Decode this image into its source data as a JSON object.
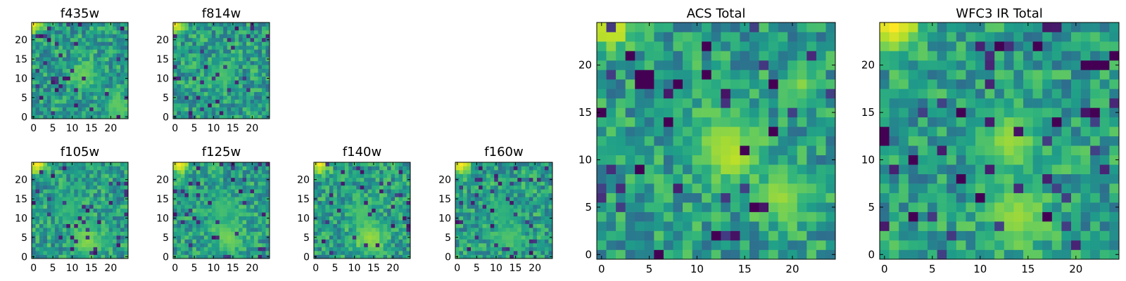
{
  "chart_data": [
    {
      "id": "f435w",
      "type": "heatmap",
      "title": "f435w",
      "grid_size": [
        25,
        25
      ],
      "colormap": "viridis",
      "xlabel": "",
      "ylabel": "",
      "xticks": [
        0,
        5,
        10,
        15,
        20
      ],
      "yticks": [
        0,
        5,
        10,
        15,
        20
      ],
      "xlim": [
        -0.5,
        24.5
      ],
      "ylim": [
        -0.5,
        24.5
      ],
      "origin": "lower",
      "grid": false,
      "noise_seed": 11,
      "features": [
        {
          "x": 0,
          "y": 24,
          "v": 1.0,
          "radius": 1.6
        },
        {
          "x": 13,
          "y": 11,
          "v": 0.78,
          "radius": 2.5
        },
        {
          "x": 22,
          "y": 3,
          "v": 0.75,
          "radius": 2.5
        }
      ]
    },
    {
      "id": "f814w",
      "type": "heatmap",
      "title": "f814w",
      "grid_size": [
        25,
        25
      ],
      "colormap": "viridis",
      "xlabel": "",
      "ylabel": "",
      "xticks": [
        0,
        5,
        10,
        15,
        20
      ],
      "yticks": [
        0,
        5,
        10,
        15,
        20
      ],
      "xlim": [
        -0.5,
        24.5
      ],
      "ylim": [
        -0.5,
        24.5
      ],
      "origin": "lower",
      "grid": false,
      "noise_seed": 23,
      "features": [
        {
          "x": 0,
          "y": 24,
          "v": 1.0,
          "radius": 1.6
        },
        {
          "x": 12,
          "y": 11,
          "v": 0.72,
          "radius": 2.5
        }
      ]
    },
    {
      "id": "f105w",
      "type": "heatmap",
      "title": "f105w",
      "grid_size": [
        25,
        25
      ],
      "colormap": "viridis",
      "xlabel": "",
      "ylabel": "",
      "xticks": [
        0,
        5,
        10,
        15,
        20
      ],
      "yticks": [
        0,
        5,
        10,
        15,
        20
      ],
      "xlim": [
        -0.5,
        24.5
      ],
      "ylim": [
        -0.5,
        24.5
      ],
      "origin": "lower",
      "grid": false,
      "noise_seed": 37,
      "features": [
        {
          "x": 1,
          "y": 24,
          "v": 1.0,
          "radius": 1.8
        },
        {
          "x": 14,
          "y": 4,
          "v": 0.82,
          "radius": 2.8
        },
        {
          "x": 9,
          "y": 13,
          "v": 0.68,
          "radius": 2.5
        }
      ]
    },
    {
      "id": "f125w",
      "type": "heatmap",
      "title": "f125w",
      "grid_size": [
        25,
        25
      ],
      "colormap": "viridis",
      "xlabel": "",
      "ylabel": "",
      "xticks": [
        0,
        5,
        10,
        15,
        20
      ],
      "yticks": [
        0,
        5,
        10,
        15,
        20
      ],
      "xlim": [
        -0.5,
        24.5
      ],
      "ylim": [
        -0.5,
        24.5
      ],
      "origin": "lower",
      "grid": false,
      "noise_seed": 41,
      "features": [
        {
          "x": 1,
          "y": 24,
          "v": 1.0,
          "radius": 1.8
        },
        {
          "x": 14,
          "y": 5,
          "v": 0.8,
          "radius": 2.8
        },
        {
          "x": 12,
          "y": 12,
          "v": 0.7,
          "radius": 2.5
        }
      ]
    },
    {
      "id": "f140w",
      "type": "heatmap",
      "title": "f140w",
      "grid_size": [
        25,
        25
      ],
      "colormap": "viridis",
      "xlabel": "",
      "ylabel": "",
      "xticks": [
        0,
        5,
        10,
        15,
        20
      ],
      "yticks": [
        0,
        5,
        10,
        15,
        20
      ],
      "xlim": [
        -0.5,
        24.5
      ],
      "ylim": [
        -0.5,
        24.5
      ],
      "origin": "lower",
      "grid": false,
      "noise_seed": 53,
      "features": [
        {
          "x": 1,
          "y": 24,
          "v": 1.0,
          "radius": 1.8
        },
        {
          "x": 14,
          "y": 5,
          "v": 0.85,
          "radius": 3.0
        },
        {
          "x": 12,
          "y": 12,
          "v": 0.72,
          "radius": 2.5
        }
      ]
    },
    {
      "id": "f160w",
      "type": "heatmap",
      "title": "f160w",
      "grid_size": [
        25,
        25
      ],
      "colormap": "viridis",
      "xlabel": "",
      "ylabel": "",
      "xticks": [
        0,
        5,
        10,
        15,
        20
      ],
      "yticks": [
        0,
        5,
        10,
        15,
        20
      ],
      "xlim": [
        -0.5,
        24.5
      ],
      "ylim": [
        -0.5,
        24.5
      ],
      "origin": "lower",
      "grid": false,
      "noise_seed": 67,
      "features": [
        {
          "x": 1,
          "y": 24,
          "v": 1.0,
          "radius": 1.8
        },
        {
          "x": 13,
          "y": 5,
          "v": 0.72,
          "radius": 2.8
        },
        {
          "x": 12,
          "y": 12,
          "v": 0.65,
          "radius": 2.5
        }
      ]
    },
    {
      "id": "acs-total",
      "type": "heatmap",
      "title": "ACS Total",
      "grid_size": [
        25,
        25
      ],
      "colormap": "viridis",
      "xlabel": "",
      "ylabel": "",
      "xticks": [
        0,
        5,
        10,
        15,
        20
      ],
      "yticks": [
        0,
        5,
        10,
        15,
        20
      ],
      "xlim": [
        -0.5,
        24.5
      ],
      "ylim": [
        -0.5,
        24.5
      ],
      "origin": "lower",
      "grid": false,
      "noise_seed": 79,
      "features": [
        {
          "x": 1,
          "y": 24,
          "v": 1.0,
          "radius": 1.6
        },
        {
          "x": 13,
          "y": 12,
          "v": 0.85,
          "radius": 2.4
        },
        {
          "x": 14,
          "y": 10,
          "v": 0.9,
          "radius": 1.4
        },
        {
          "x": 19,
          "y": 6,
          "v": 0.85,
          "radius": 2.0
        },
        {
          "x": 21,
          "y": 18,
          "v": 0.82,
          "radius": 1.2
        }
      ],
      "dark_cells": [
        [
          0,
          15
        ],
        [
          4,
          18
        ],
        [
          5,
          18
        ],
        [
          4,
          19
        ],
        [
          5,
          19
        ],
        [
          8,
          18
        ],
        [
          11,
          19
        ],
        [
          18,
          18
        ],
        [
          11,
          22
        ],
        [
          4,
          9
        ],
        [
          7,
          14
        ],
        [
          15,
          11
        ],
        [
          12,
          2
        ],
        [
          18,
          13
        ],
        [
          3,
          21
        ],
        [
          6,
          0
        ],
        [
          16,
          5
        ]
      ]
    },
    {
      "id": "wfc3-ir-total",
      "type": "heatmap",
      "title": "WFC3 IR Total",
      "grid_size": [
        25,
        25
      ],
      "colormap": "viridis",
      "xlabel": "",
      "ylabel": "",
      "xticks": [
        0,
        5,
        10,
        15,
        20
      ],
      "yticks": [
        0,
        5,
        10,
        15,
        20
      ],
      "xlim": [
        -0.5,
        24.5
      ],
      "ylim": [
        -0.5,
        24.5
      ],
      "origin": "lower",
      "grid": false,
      "noise_seed": 97,
      "features": [
        {
          "x": 1,
          "y": 24,
          "v": 1.0,
          "radius": 2.0
        },
        {
          "x": 13,
          "y": 12,
          "v": 0.85,
          "radius": 2.2
        },
        {
          "x": 14,
          "y": 4,
          "v": 0.85,
          "radius": 2.4
        }
      ],
      "dark_cells": [
        [
          0,
          12
        ],
        [
          0,
          13
        ],
        [
          3,
          4
        ],
        [
          3,
          10
        ],
        [
          8,
          8
        ],
        [
          8,
          15
        ],
        [
          18,
          14
        ],
        [
          21,
          20
        ],
        [
          22,
          20
        ],
        [
          23,
          20
        ],
        [
          24,
          21
        ],
        [
          16,
          22
        ],
        [
          12,
          22
        ],
        [
          17,
          4
        ],
        [
          10,
          6
        ],
        [
          22,
          15
        ]
      ]
    }
  ]
}
